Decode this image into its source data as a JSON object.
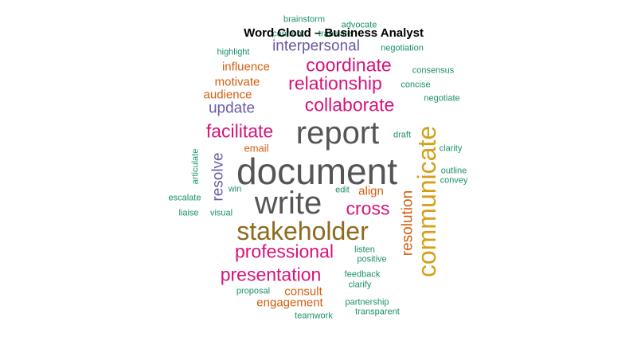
{
  "chart_data": {
    "type": "wordcloud",
    "title": "Word Cloud – Business Analyst",
    "palette": {
      "dark_gray": "#555555",
      "brown": "#8c6a1e",
      "gold": "#d4a017",
      "magenta": "#d6127a",
      "purple": "#6a5aa6",
      "orange": "#d35e0f",
      "teal": "#1b9068"
    },
    "words": [
      {
        "text": "document",
        "size_rank": 1,
        "color": "#555555"
      },
      {
        "text": "report",
        "size_rank": 2,
        "color": "#555555"
      },
      {
        "text": "write",
        "size_rank": 2,
        "color": "#555555"
      },
      {
        "text": "stakeholder",
        "size_rank": 3,
        "color": "#8c6a1e"
      },
      {
        "text": "communicate",
        "size_rank": 3,
        "color": "#d4a017"
      },
      {
        "text": "collaborate",
        "size_rank": 4,
        "color": "#d6127a"
      },
      {
        "text": "coordinate",
        "size_rank": 4,
        "color": "#d6127a"
      },
      {
        "text": "relationship",
        "size_rank": 4,
        "color": "#d6127a"
      },
      {
        "text": "facilitate",
        "size_rank": 4,
        "color": "#d6127a"
      },
      {
        "text": "professional",
        "size_rank": 4,
        "color": "#d6127a"
      },
      {
        "text": "presentation",
        "size_rank": 4,
        "color": "#d6127a"
      },
      {
        "text": "cross",
        "size_rank": 4,
        "color": "#d6127a"
      },
      {
        "text": "interpersonal",
        "size_rank": 5,
        "color": "#6a5aa6"
      },
      {
        "text": "update",
        "size_rank": 5,
        "color": "#6a5aa6"
      },
      {
        "text": "resolve",
        "size_rank": 5,
        "color": "#6a5aa6"
      },
      {
        "text": "resolution",
        "size_rank": 5,
        "color": "#d35e0f"
      },
      {
        "text": "influence",
        "size_rank": 6,
        "color": "#d35e0f"
      },
      {
        "text": "motivate",
        "size_rank": 6,
        "color": "#d35e0f"
      },
      {
        "text": "audience",
        "size_rank": 6,
        "color": "#d35e0f"
      },
      {
        "text": "consult",
        "size_rank": 6,
        "color": "#d35e0f"
      },
      {
        "text": "engagement",
        "size_rank": 6,
        "color": "#d35e0f"
      },
      {
        "text": "align",
        "size_rank": 6,
        "color": "#d35e0f"
      },
      {
        "text": "email",
        "size_rank": 7,
        "color": "#d35e0f"
      },
      {
        "text": "brainstorm",
        "size_rank": 8,
        "color": "#1b9068"
      },
      {
        "text": "advocate",
        "size_rank": 8,
        "color": "#1b9068"
      },
      {
        "text": "confront",
        "size_rank": 8,
        "color": "#1b9068"
      },
      {
        "text": "translate",
        "size_rank": 8,
        "color": "#1b9068"
      },
      {
        "text": "highlight",
        "size_rank": 8,
        "color": "#1b9068"
      },
      {
        "text": "negotiation",
        "size_rank": 8,
        "color": "#1b9068"
      },
      {
        "text": "consensus",
        "size_rank": 8,
        "color": "#1b9068"
      },
      {
        "text": "concise",
        "size_rank": 8,
        "color": "#1b9068"
      },
      {
        "text": "negotiate",
        "size_rank": 8,
        "color": "#1b9068"
      },
      {
        "text": "draft",
        "size_rank": 8,
        "color": "#1b9068"
      },
      {
        "text": "clarity",
        "size_rank": 8,
        "color": "#1b9068"
      },
      {
        "text": "articulate",
        "size_rank": 8,
        "color": "#1b9068"
      },
      {
        "text": "outline",
        "size_rank": 8,
        "color": "#1b9068"
      },
      {
        "text": "convey",
        "size_rank": 8,
        "color": "#1b9068"
      },
      {
        "text": "win",
        "size_rank": 8,
        "color": "#1b9068"
      },
      {
        "text": "edit",
        "size_rank": 8,
        "color": "#1b9068"
      },
      {
        "text": "escalate",
        "size_rank": 8,
        "color": "#1b9068"
      },
      {
        "text": "liaise",
        "size_rank": 8,
        "color": "#1b9068"
      },
      {
        "text": "visual",
        "size_rank": 8,
        "color": "#1b9068"
      },
      {
        "text": "listen",
        "size_rank": 8,
        "color": "#1b9068"
      },
      {
        "text": "positive",
        "size_rank": 8,
        "color": "#1b9068"
      },
      {
        "text": "feedback",
        "size_rank": 8,
        "color": "#1b9068"
      },
      {
        "text": "clarify",
        "size_rank": 8,
        "color": "#1b9068"
      },
      {
        "text": "proposal",
        "size_rank": 8,
        "color": "#1b9068"
      },
      {
        "text": "partnership",
        "size_rank": 8,
        "color": "#1b9068"
      },
      {
        "text": "teamwork",
        "size_rank": 8,
        "color": "#1b9068"
      },
      {
        "text": "transparent",
        "size_rank": 8,
        "color": "#1b9068"
      }
    ]
  }
}
